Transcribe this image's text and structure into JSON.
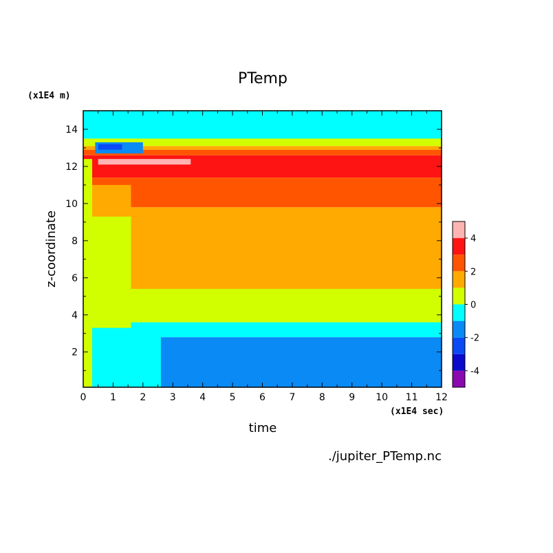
{
  "chart_data": {
    "type": "heatmap",
    "title": "PTemp",
    "xlabel": "time",
    "ylabel": "z-coordinate",
    "x_unit": "(x1E4 sec)",
    "y_unit": "(x1E4 m)",
    "xlim": [
      0,
      12
    ],
    "ylim": [
      0.1,
      15
    ],
    "x_ticks": [
      "0",
      "1",
      "2",
      "3",
      "4",
      "5",
      "6",
      "7",
      "8",
      "9",
      "10",
      "11",
      "12"
    ],
    "y_ticks": [
      "2",
      "4",
      "6",
      "8",
      "10",
      "12",
      "14"
    ],
    "colorbar": {
      "levels": [
        -5,
        -4,
        -3,
        -2,
        -1,
        0,
        1,
        2,
        3,
        4,
        5
      ],
      "colors": [
        "#8a0ab0",
        "#0a0acc",
        "#0a4af5",
        "#0a8af5",
        "#00ffff",
        "#d2ff00",
        "#ffaa00",
        "#ff5500",
        "#ff1414",
        "#ffb4b4"
      ],
      "tick_labels": [
        "-4",
        "-2",
        "0",
        "2",
        "4"
      ],
      "tick_values": [
        -4,
        -2,
        0,
        2,
        4
      ]
    },
    "steady_profile": [
      {
        "z_min": 0.1,
        "z_max": 2.8,
        "value": -1.5
      },
      {
        "z_min": 2.8,
        "z_max": 3.6,
        "value": -0.5
      },
      {
        "z_min": 3.6,
        "z_max": 5.4,
        "value": 0.5
      },
      {
        "z_min": 5.4,
        "z_max": 9.8,
        "value": 1.5
      },
      {
        "z_min": 9.8,
        "z_max": 11.4,
        "value": 2.5
      },
      {
        "z_min": 11.4,
        "z_max": 12.6,
        "value": 3.5
      },
      {
        "z_min": 12.6,
        "z_max": 12.9,
        "value": 2.5
      },
      {
        "z_min": 12.9,
        "z_max": 13.1,
        "value": 1.5
      },
      {
        "z_min": 13.1,
        "z_max": 13.5,
        "value": 0.5
      },
      {
        "z_min": 13.5,
        "z_max": 15.0,
        "value": -0.5
      }
    ],
    "transient_features": [
      {
        "t_min": 0.0,
        "t_max": 0.3,
        "z_min": 0.1,
        "z_max": 12.4,
        "value": 0.5
      },
      {
        "t_min": 0.3,
        "t_max": 2.6,
        "z_min": 0.1,
        "z_max": 3.3,
        "value": -0.5
      },
      {
        "t_min": 0.3,
        "t_max": 1.6,
        "z_min": 3.3,
        "z_max": 9.3,
        "value": 0.5
      },
      {
        "t_min": 0.3,
        "t_max": 1.6,
        "z_min": 9.3,
        "z_max": 11.0,
        "value": 1.5
      },
      {
        "t_min": 0.4,
        "t_max": 2.0,
        "z_min": 12.7,
        "z_max": 13.3,
        "value": -1.5
      },
      {
        "t_min": 0.5,
        "t_max": 1.3,
        "z_min": 12.9,
        "z_max": 13.2,
        "value": -2.5
      },
      {
        "t_min": 0.5,
        "t_max": 3.6,
        "z_min": 12.1,
        "z_max": 12.4,
        "value": 4.5
      }
    ]
  },
  "footer": {
    "filename": "./jupiter_PTemp.nc"
  }
}
